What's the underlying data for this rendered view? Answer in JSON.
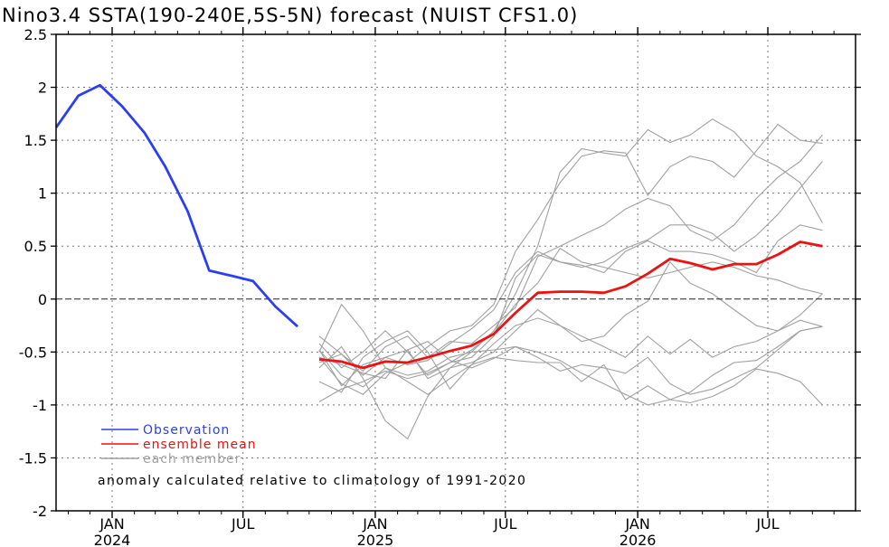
{
  "chart_data": {
    "type": "line",
    "title": "Nino3.4 SSTA(190-240E,5S-5N) forecast (NUIST CFS1.0)",
    "xlabel": "",
    "ylabel": "",
    "ylim": [
      -2,
      2.5
    ],
    "yticks": [
      -2,
      -1.5,
      -1,
      -0.5,
      0,
      0.5,
      1,
      1.5,
      2,
      2.5
    ],
    "ytick_labels": [
      "-2",
      "-1.5",
      "-1",
      "-0.5",
      "0",
      "0.5",
      "1",
      "1.5",
      "2",
      "2.5"
    ],
    "xlim": [
      "2023-10-15",
      "2026-10-31"
    ],
    "xticks": [
      {
        "date": "2024-01-01",
        "label": "JAN",
        "year": "2024"
      },
      {
        "date": "2024-07-01",
        "label": "JUL",
        "year": ""
      },
      {
        "date": "2025-01-01",
        "label": "JAN",
        "year": "2025"
      },
      {
        "date": "2025-07-01",
        "label": "JUL",
        "year": ""
      },
      {
        "date": "2026-01-01",
        "label": "JAN",
        "year": "2026"
      },
      {
        "date": "2026-07-01",
        "label": "JUL",
        "year": ""
      }
    ],
    "grid": true,
    "zero_line": true,
    "legend_position": "bottom-left",
    "annotation": "anomaly calculated relative to climatology of 1991-2020",
    "observation": {
      "name": "Observation",
      "color": "#2b3ff0",
      "x": [
        "2023-10-15",
        "2023-11-15",
        "2023-12-15",
        "2024-01-15",
        "2024-02-15",
        "2024-03-15",
        "2024-04-15",
        "2024-05-15",
        "2024-06-15",
        "2024-07-15",
        "2024-08-15",
        "2024-09-15"
      ],
      "y": [
        1.62,
        1.92,
        2.02,
        1.82,
        1.57,
        1.25,
        0.83,
        0.27,
        0.22,
        0.17,
        -0.07,
        -0.26
      ]
    },
    "ensemble_mean": {
      "name": "ensemble mean",
      "color": "#ee1111",
      "x": [
        "2024-10-15",
        "2024-11-15",
        "2024-12-15",
        "2025-01-15",
        "2025-02-15",
        "2025-03-15",
        "2025-04-15",
        "2025-05-15",
        "2025-06-15",
        "2025-07-15",
        "2025-08-15",
        "2025-09-15",
        "2025-10-15",
        "2025-11-15",
        "2025-12-15",
        "2026-01-15",
        "2026-02-15",
        "2026-03-15",
        "2026-04-15",
        "2026-05-15",
        "2026-06-15",
        "2026-07-15",
        "2026-08-15",
        "2026-09-15"
      ],
      "y": [
        -0.57,
        -0.59,
        -0.65,
        -0.59,
        -0.6,
        -0.55,
        -0.49,
        -0.44,
        -0.33,
        -0.13,
        0.06,
        0.07,
        0.07,
        0.06,
        0.12,
        0.24,
        0.38,
        0.34,
        0.28,
        0.33,
        0.33,
        0.42,
        0.54,
        0.5
      ]
    },
    "members": {
      "name": "each member",
      "color": "#a0a0a0",
      "x": [
        "2024-10-15",
        "2024-11-15",
        "2024-12-15",
        "2025-01-15",
        "2025-02-15",
        "2025-03-15",
        "2025-04-15",
        "2025-05-15",
        "2025-06-15",
        "2025-07-15",
        "2025-08-15",
        "2025-09-15",
        "2025-10-15",
        "2025-11-15",
        "2025-12-15",
        "2026-01-15",
        "2026-02-15",
        "2026-03-15",
        "2026-04-15",
        "2026-05-15",
        "2026-06-15",
        "2026-07-15",
        "2026-08-15",
        "2026-09-15"
      ],
      "series": [
        [
          -0.48,
          -0.72,
          -0.83,
          -0.65,
          -0.72,
          -0.68,
          -0.55,
          -0.5,
          -0.3,
          0.05,
          0.5,
          1.2,
          1.42,
          1.38,
          1.35,
          1.6,
          1.48,
          1.55,
          1.7,
          1.58,
          1.35,
          1.25,
          1.1,
          0.72
        ],
        [
          -0.55,
          -0.8,
          -0.9,
          -0.7,
          -0.6,
          -0.45,
          -0.3,
          -0.25,
          -0.05,
          0.45,
          0.75,
          1.1,
          1.35,
          1.4,
          1.38,
          0.98,
          1.25,
          1.35,
          1.3,
          1.15,
          1.4,
          1.65,
          1.5,
          1.47
        ],
        [
          -0.6,
          -0.52,
          -0.68,
          -0.45,
          -0.35,
          -0.55,
          -0.4,
          -0.42,
          -0.25,
          -0.08,
          0.4,
          0.5,
          0.6,
          0.7,
          0.85,
          0.95,
          0.88,
          0.65,
          0.55,
          0.7,
          0.95,
          1.15,
          1.3,
          1.55
        ],
        [
          -0.42,
          -0.65,
          -0.5,
          -0.3,
          -0.5,
          -0.72,
          -0.6,
          -0.55,
          -0.35,
          0.2,
          0.42,
          0.35,
          0.3,
          0.35,
          0.48,
          0.56,
          0.7,
          0.7,
          0.62,
          0.45,
          0.6,
          0.8,
          1.05,
          1.3
        ],
        [
          -0.35,
          -0.52,
          -0.72,
          -0.55,
          -0.62,
          -0.58,
          -0.42,
          -0.28,
          -0.1,
          0.25,
          0.45,
          0.35,
          0.32,
          0.25,
          0.45,
          0.55,
          0.45,
          0.45,
          0.42,
          0.35,
          0.25,
          0.55,
          0.7,
          0.65
        ],
        [
          -0.97,
          -0.85,
          -0.78,
          -0.68,
          -0.75,
          -0.7,
          -0.6,
          -0.48,
          -0.32,
          -0.05,
          0.15,
          0.48,
          0.35,
          0.3,
          0.25,
          0.2,
          0.25,
          0.3,
          0.35,
          0.3,
          0.22,
          0.18,
          0.1,
          0.05
        ],
        [
          -0.48,
          -0.82,
          -0.62,
          -0.55,
          -0.48,
          -0.75,
          -0.65,
          -0.6,
          -0.5,
          -0.3,
          -0.1,
          -0.25,
          -0.4,
          -0.35,
          -0.15,
          -0.02,
          0.35,
          0.15,
          0.05,
          -0.1,
          -0.25,
          -0.3,
          -0.2,
          -0.26
        ],
        [
          -0.5,
          -0.05,
          -0.3,
          -0.65,
          -0.78,
          -0.9,
          -0.75,
          -0.62,
          -0.42,
          -0.25,
          -0.18,
          -0.25,
          -0.35,
          -0.45,
          -0.55,
          -0.35,
          -0.52,
          -0.38,
          -0.55,
          -0.45,
          -0.4,
          -0.3,
          -0.15,
          0.05
        ],
        [
          -0.65,
          -0.45,
          -0.75,
          -1.15,
          -1.32,
          -0.92,
          -0.65,
          -0.5,
          -0.48,
          -0.45,
          -0.55,
          -0.68,
          -0.62,
          -0.65,
          -0.7,
          -0.55,
          -0.8,
          -0.9,
          -0.85,
          -0.75,
          -0.65,
          -0.48,
          -0.3,
          -0.26
        ],
        [
          -0.78,
          -0.88,
          -0.55,
          -0.4,
          -0.3,
          -0.5,
          -0.85,
          -0.62,
          -0.55,
          -0.58,
          -0.6,
          -0.6,
          -0.78,
          -0.62,
          -0.95,
          -0.82,
          -0.95,
          -0.98,
          -0.92,
          -0.82,
          -0.66,
          -0.7,
          -0.78,
          -1.0
        ],
        [
          -0.55,
          -0.62,
          -0.7,
          -0.75,
          -0.48,
          -0.4,
          -0.58,
          -0.65,
          -0.56,
          -0.45,
          -0.5,
          -0.58,
          -0.7,
          -0.8,
          -0.9,
          -1.0,
          -0.95,
          -0.88,
          -0.72,
          -0.6,
          -0.58,
          -0.45,
          -0.3,
          -0.26
        ]
      ]
    }
  }
}
